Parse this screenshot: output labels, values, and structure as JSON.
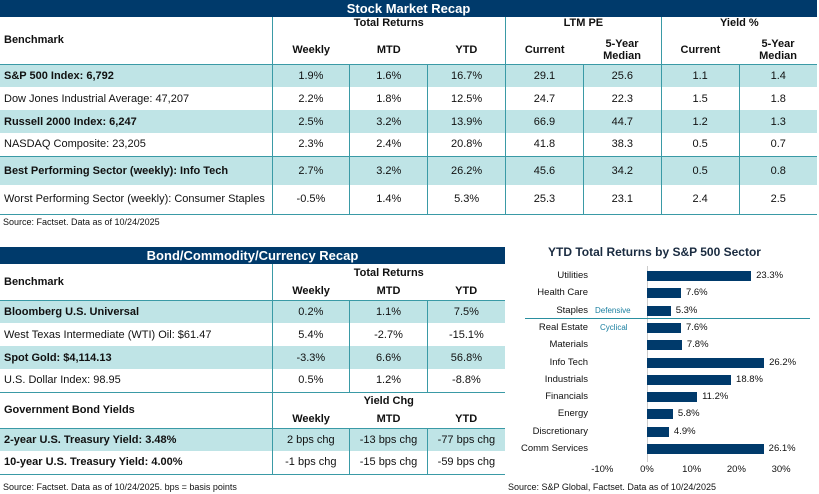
{
  "stock": {
    "title": "Stock Market Recap",
    "benchmark_label": "Benchmark",
    "groups": [
      "Total Returns",
      "LTM PE",
      "Yield %"
    ],
    "cols": [
      "Weekly",
      "MTD",
      "YTD",
      "Current",
      "5-Year Median",
      "Current",
      "5-Year Median"
    ],
    "rows": [
      {
        "name": "S&P 500 Index: 6,792",
        "vals": [
          "1.9%",
          "1.6%",
          "16.7%",
          "29.1",
          "25.6",
          "1.1",
          "1.4"
        ]
      },
      {
        "name": "Dow Jones Industrial Average: 47,207",
        "vals": [
          "2.2%",
          "1.8%",
          "12.5%",
          "24.7",
          "22.3",
          "1.5",
          "1.8"
        ]
      },
      {
        "name": "Russell 2000 Index: 6,247",
        "vals": [
          "2.5%",
          "3.2%",
          "13.9%",
          "66.9",
          "44.7",
          "1.2",
          "1.3"
        ]
      },
      {
        "name": "NASDAQ Composite: 23,205",
        "vals": [
          "2.3%",
          "2.4%",
          "20.8%",
          "41.8",
          "38.3",
          "0.5",
          "0.7"
        ]
      },
      {
        "name": "Best Performing Sector (weekly): Info Tech",
        "vals": [
          "2.7%",
          "3.2%",
          "26.2%",
          "45.6",
          "34.2",
          "0.5",
          "0.8"
        ]
      },
      {
        "name": "Worst Performing Sector (weekly): Consumer Staples",
        "vals": [
          "-0.5%",
          "1.4%",
          "5.3%",
          "25.3",
          "23.1",
          "2.4",
          "2.5"
        ]
      }
    ],
    "source": "Source: Factset. Data as of 10/24/2025"
  },
  "bond": {
    "title": "Bond/Commodity/Currency Recap",
    "benchmark_label": "Benchmark",
    "group": "Total Returns",
    "cols": [
      "Weekly",
      "MTD",
      "YTD"
    ],
    "rows": [
      {
        "name": "Bloomberg U.S. Universal",
        "vals": [
          "0.2%",
          "1.1%",
          "7.5%"
        ]
      },
      {
        "name": "West Texas Intermediate (WTI) Oil: $61.47",
        "vals": [
          "5.4%",
          "-2.7%",
          "-15.1%"
        ]
      },
      {
        "name": "Spot Gold: $4,114.13",
        "vals": [
          "-3.3%",
          "6.6%",
          "56.8%"
        ]
      },
      {
        "name": "U.S. Dollar Index: 98.95",
        "vals": [
          "0.5%",
          "1.2%",
          "-8.8%"
        ]
      }
    ],
    "gov_label": "Government Bond Yields",
    "gov_group": "Yield Chg",
    "gov_rows": [
      {
        "name": "2-year U.S. Treasury Yield: 3.48%",
        "vals": [
          "2 bps chg",
          "-13 bps chg",
          "-77 bps chg"
        ]
      },
      {
        "name": "10-year U.S. Treasury Yield: 4.00%",
        "vals": [
          "-1 bps chg",
          "-15 bps chg",
          "-59 bps chg"
        ]
      }
    ],
    "source": "Source: Factset. Data as of 10/24/2025. bps = basis points"
  },
  "chart_data": {
    "type": "bar",
    "orientation": "horizontal",
    "title": "YTD Total Returns by S&P 500 Sector",
    "categories": [
      "Utilities",
      "Health Care",
      "Staples",
      "Real Estate",
      "Materials",
      "Info Tech",
      "Industrials",
      "Financials",
      "Energy",
      "Discretionary",
      "Comm Services"
    ],
    "values": [
      23.3,
      7.6,
      5.3,
      7.6,
      7.8,
      26.2,
      18.8,
      11.2,
      5.8,
      4.9,
      26.1
    ],
    "labels": [
      "23.3%",
      "7.6%",
      "5.3%",
      "7.6%",
      "7.8%",
      "26.2%",
      "18.8%",
      "11.2%",
      "5.8%",
      "4.9%",
      "26.1%"
    ],
    "xlim": [
      -10,
      30
    ],
    "ticks": [
      "-10%",
      "0%",
      "10%",
      "20%",
      "30%"
    ],
    "annotations": [
      "Defensive",
      "Cyclical"
    ],
    "bar_color": "#003a6b",
    "source": "Source: S&P Global, Factset. Data as of 10/24/2025"
  }
}
